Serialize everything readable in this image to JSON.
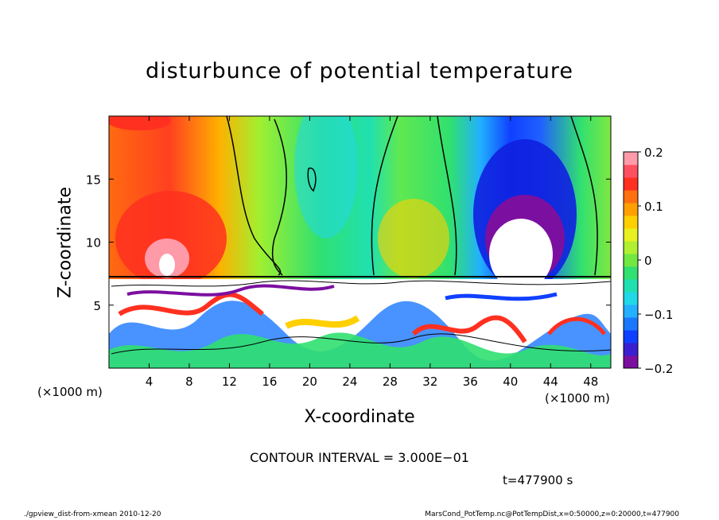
{
  "chart_data": {
    "type": "heatmap",
    "title": "disturbunce of potential temperature",
    "xlabel": "X-coordinate",
    "ylabel": "Z-coordinate",
    "x_unit_left": "(×1000 m)",
    "x_unit_right": "(×1000 m)",
    "xlim": [
      0,
      50
    ],
    "ylim": [
      0,
      20
    ],
    "xticks": [
      4,
      8,
      12,
      16,
      20,
      24,
      28,
      32,
      36,
      40,
      44,
      48
    ],
    "yticks": [
      5,
      10,
      15
    ],
    "colorbar": {
      "range": [
        -0.2,
        0.2
      ],
      "ticks": [
        "0.2",
        "0.1",
        "0",
        "−0.1",
        "−0.2"
      ],
      "tick_values": [
        0.2,
        0.1,
        0,
        -0.1,
        -0.2
      ],
      "colors": [
        "#7b0fa0",
        "#3a1fd0",
        "#1040ff",
        "#1a78ff",
        "#22b0ff",
        "#20d8e8",
        "#20e0b0",
        "#30e070",
        "#70e840",
        "#b0f030",
        "#e8f020",
        "#ffd000",
        "#ffa000",
        "#ff7010",
        "#ff3020",
        "#ff5060",
        "#ff9aa8"
      ]
    },
    "grid": false,
    "legend": "right"
  },
  "annotations": {
    "contour_interval": "CONTOUR INTERVAL = 3.000E−01",
    "time": "t=477900 s",
    "footer_left": "./gpview_dist-from-xmean   2010-12-20",
    "footer_right": "MarsCond_PotTemp.nc@PotTempDist,x=0:50000,z=0:20000,t=477900"
  }
}
